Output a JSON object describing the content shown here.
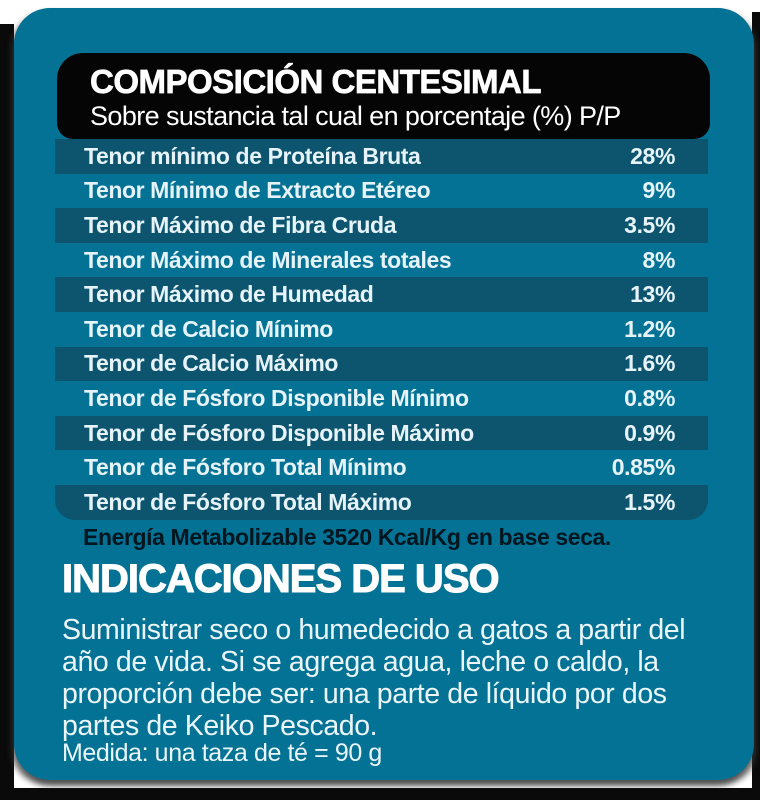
{
  "label": {
    "colors": {
      "card_bg": "#047294",
      "row_dark": "#0d546e",
      "header_bg": "#050505",
      "edge_black": "#0a0a0a",
      "title_text": "#ffffff",
      "row_text": "#e6f4f9",
      "note_text": "#03161f",
      "body_text": "#eaf6fa"
    },
    "header": {
      "title": "COMPOSICIÓN CENTESIMAL",
      "subtitle": "Sobre sustancia tal cual en porcentaje (%) P/P"
    },
    "table": {
      "rows": [
        {
          "name": "Tenor mínimo de Proteína Bruta",
          "value": "28%"
        },
        {
          "name": "Tenor Mínimo de Extracto Etéreo",
          "value": "9%"
        },
        {
          "name": "Tenor Máximo de Fibra Cruda",
          "value": "3.5%"
        },
        {
          "name": "Tenor Máximo de Minerales totales",
          "value": "8%"
        },
        {
          "name": "Tenor Máximo de Humedad",
          "value": "13%"
        },
        {
          "name": "Tenor de Calcio Mínimo",
          "value": "1.2%"
        },
        {
          "name": "Tenor de Calcio Máximo",
          "value": "1.6%"
        },
        {
          "name": "Tenor de Fósforo Disponible Mínimo",
          "value": "0.8%"
        },
        {
          "name": "Tenor de Fósforo Disponible Máximo",
          "value": "0.9%"
        },
        {
          "name": "Tenor de Fósforo Total Mínimo",
          "value": "0.85%"
        },
        {
          "name": "Tenor de Fósforo Total Máximo",
          "value": "1.5%"
        }
      ]
    },
    "energy_note": "Energía Metabolizable 3520 Kcal/Kg en base seca.",
    "usage": {
      "heading": "INDICACIONES DE USO",
      "body": "Suministrar seco o humedecido a gatos a partir del año de vida. Si se agrega agua, leche o caldo, la proporción debe ser: una parte de líquido por dos partes de Keiko Pescado.",
      "measure": "Medida: una taza de té = 90 g"
    }
  }
}
